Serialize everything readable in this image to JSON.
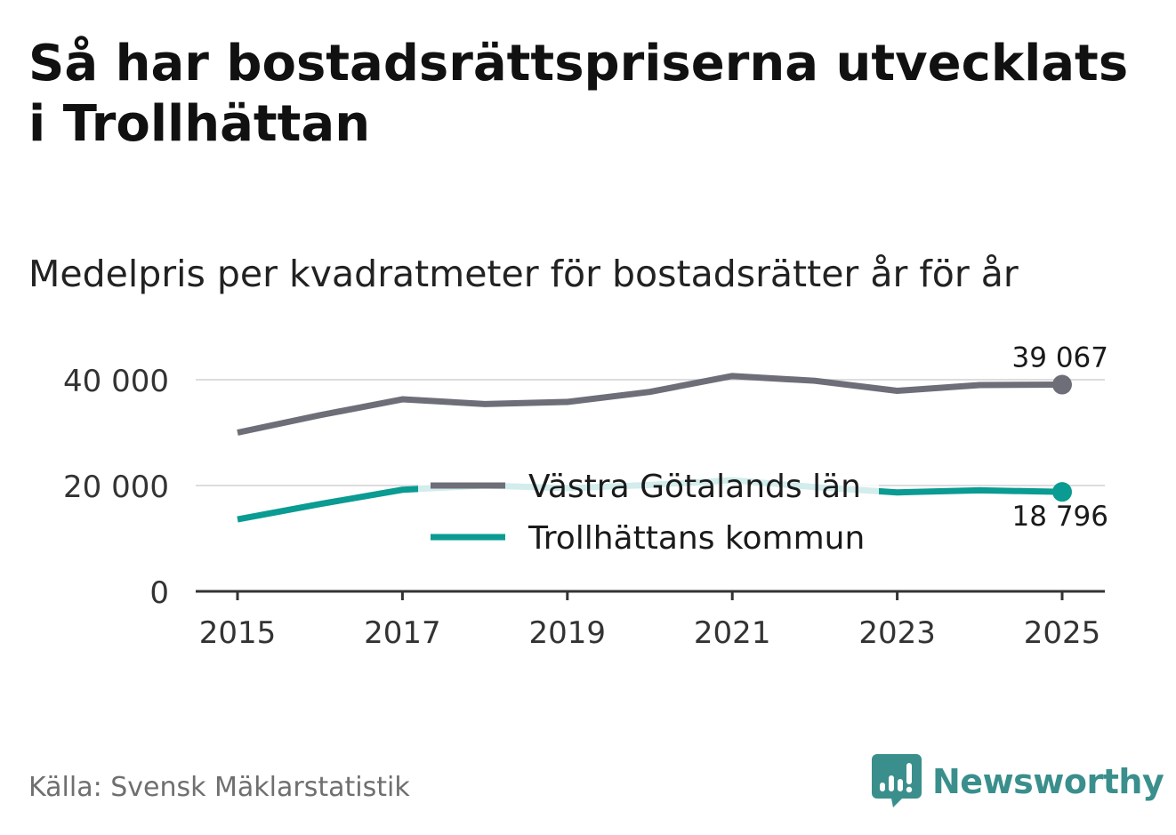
{
  "title": "Så har bostadsrättspriserna utvecklats i Trollhättan",
  "subtitle": "Medelpris per kvadratmeter för bostadsrätter år för år",
  "source": "Källa: Svensk Mäklarstatistik",
  "brand": "Newsworthy",
  "colors": {
    "lan": "#6e6e78",
    "kommun": "#0a9b92",
    "grid": "#dcdcdc",
    "axis": "#333333",
    "brand": "#3a8f8c"
  },
  "chart_data": {
    "type": "line",
    "title": "Så har bostadsrättspriserna utvecklats i Trollhättan",
    "subtitle": "Medelpris per kvadratmeter för bostadsrätter år för år",
    "xlabel": "",
    "ylabel": "",
    "x": [
      2015,
      2016,
      2017,
      2018,
      2019,
      2020,
      2021,
      2022,
      2023,
      2024,
      2025
    ],
    "x_ticks": [
      "2015",
      "2017",
      "2019",
      "2021",
      "2023",
      "2025"
    ],
    "y_ticks": [
      0,
      20000,
      40000
    ],
    "y_tick_labels": [
      "0",
      "20 000",
      "40 000"
    ],
    "xlim": [
      2015,
      2025
    ],
    "ylim": [
      0,
      40000
    ],
    "grid": true,
    "legend_position": "center",
    "series": [
      {
        "name": "Västra Götalands län",
        "values": [
          30000,
          33300,
          36300,
          35400,
          35800,
          37700,
          40700,
          39800,
          37900,
          39000,
          39067
        ],
        "end_label": "39 067"
      },
      {
        "name": "Trollhättans kommun",
        "values": [
          13600,
          16500,
          19200,
          20000,
          19500,
          20100,
          21000,
          19700,
          18700,
          19100,
          18796
        ],
        "end_label": "18 796"
      }
    ]
  }
}
